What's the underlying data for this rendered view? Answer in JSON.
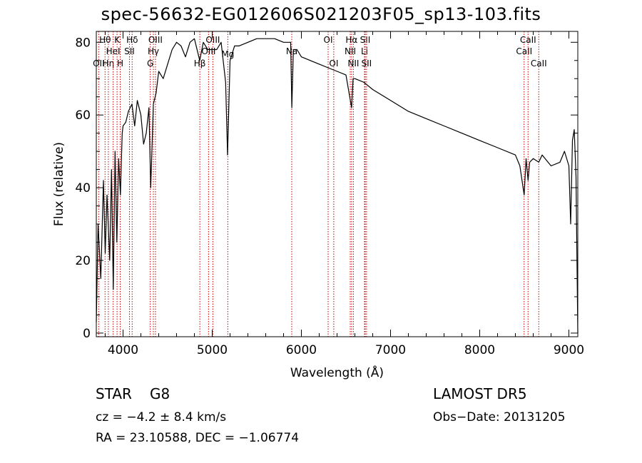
{
  "chart_data": {
    "type": "line",
    "title": "spec-56632-EG012606S021203F05_sp13-103.fits",
    "xlabel": "Wavelength (Å)",
    "ylabel": "Flux (relative)",
    "xlim": [
      3700,
      9100
    ],
    "ylim": [
      -1,
      83
    ],
    "x_ticks": [
      4000,
      5000,
      6000,
      7000,
      8000,
      9000
    ],
    "y_ticks": [
      0,
      20,
      40,
      60,
      80
    ],
    "colors": {
      "spectrum": "#000000",
      "lines": "#cc0000",
      "axes": "#000000"
    },
    "spectrum": {
      "x": [
        3700,
        3720,
        3750,
        3780,
        3800,
        3820,
        3850,
        3870,
        3890,
        3910,
        3930,
        3950,
        3970,
        3990,
        4000,
        4030,
        4060,
        4100,
        4130,
        4160,
        4200,
        4230,
        4260,
        4290,
        4310,
        4340,
        4370,
        4400,
        4450,
        4500,
        4550,
        4600,
        4650,
        4700,
        4750,
        4800,
        4860,
        4900,
        4950,
        5000,
        5050,
        5100,
        5150,
        5172,
        5200,
        5250,
        5300,
        5400,
        5500,
        5600,
        5700,
        5800,
        5880,
        5893,
        5910,
        5950,
        6000,
        6100,
        6200,
        6300,
        6400,
        6500,
        6563,
        6580,
        6600,
        6700,
        6800,
        7000,
        7200,
        7400,
        7600,
        7800,
        8000,
        8200,
        8400,
        8450,
        8498,
        8520,
        8542,
        8560,
        8600,
        8662,
        8700,
        8800,
        8900,
        8950,
        9000,
        9020,
        9040,
        9060,
        9080,
        9100
      ],
      "y": [
        3,
        30,
        15,
        42,
        22,
        38,
        20,
        45,
        12,
        50,
        25,
        48,
        38,
        55,
        57,
        58,
        61,
        63,
        57,
        64,
        60,
        52,
        55,
        62,
        40,
        63,
        66,
        72,
        70,
        74,
        78,
        80,
        79,
        76,
        80,
        81,
        75,
        80,
        78,
        78,
        78,
        80,
        69,
        49,
        75,
        79,
        79,
        80,
        81,
        81,
        81,
        80,
        80,
        62,
        78,
        78,
        76,
        75,
        74,
        73,
        72,
        71,
        62,
        70,
        70,
        69,
        67,
        64,
        61,
        59,
        57,
        55,
        53,
        51,
        49,
        46,
        38,
        48,
        42,
        47,
        48,
        47,
        49,
        46,
        47,
        50,
        46,
        30,
        53,
        56,
        43,
        0
      ]
    },
    "lines": [
      {
        "wl": 3727,
        "label": "OII",
        "row": 3
      },
      {
        "wl": 3798,
        "label": "Hθ",
        "row": 1
      },
      {
        "wl": 3835,
        "label": "Hη",
        "row": 3
      },
      {
        "wl": 3889,
        "label": "HeI",
        "row": 2
      },
      {
        "wl": 3933,
        "label": "K",
        "row": 1
      },
      {
        "wl": 3968,
        "label": "H",
        "row": 3
      },
      {
        "wl": 4072,
        "label": "SII",
        "row": 2
      },
      {
        "wl": 4102,
        "label": "Hδ",
        "row": 1
      },
      {
        "wl": 4305,
        "label": "G",
        "row": 3
      },
      {
        "wl": 4340,
        "label": "Hγ",
        "row": 2
      },
      {
        "wl": 4363,
        "label": "OIII",
        "row": 1
      },
      {
        "wl": 4861,
        "label": "Hβ",
        "row": 3
      },
      {
        "wl": 4959,
        "label": "OIII",
        "row": 2
      },
      {
        "wl": 5007,
        "label": "OIII",
        "row": 1
      },
      {
        "wl": 5175,
        "label": "Mg",
        "row": 0
      },
      {
        "wl": 5892,
        "label": "Na",
        "row": 2
      },
      {
        "wl": 6300,
        "label": "OI",
        "row": 1
      },
      {
        "wl": 6363,
        "label": "OI",
        "row": 3
      },
      {
        "wl": 6548,
        "label": "NII",
        "row": 2
      },
      {
        "wl": 6563,
        "label": "Hα",
        "row": 1
      },
      {
        "wl": 6583,
        "label": "NII",
        "row": 3
      },
      {
        "wl": 6708,
        "label": "Li",
        "row": 2
      },
      {
        "wl": 6716,
        "label": "SII",
        "row": 1
      },
      {
        "wl": 6731,
        "label": "SII",
        "row": 3
      },
      {
        "wl": 8498,
        "label": "CaII",
        "row": 2
      },
      {
        "wl": 8542,
        "label": "CaII",
        "row": 1
      },
      {
        "wl": 8662,
        "label": "CaII",
        "row": 3
      }
    ]
  },
  "info": {
    "class_label": "STAR",
    "subclass": "G8",
    "cz": "cz = −4.2 ± 8.4 km/s",
    "radec": "RA =  23.10588, DEC =  −1.06774",
    "survey": "LAMOST  DR5",
    "obs_date": "Obs−Date: 20131205"
  }
}
